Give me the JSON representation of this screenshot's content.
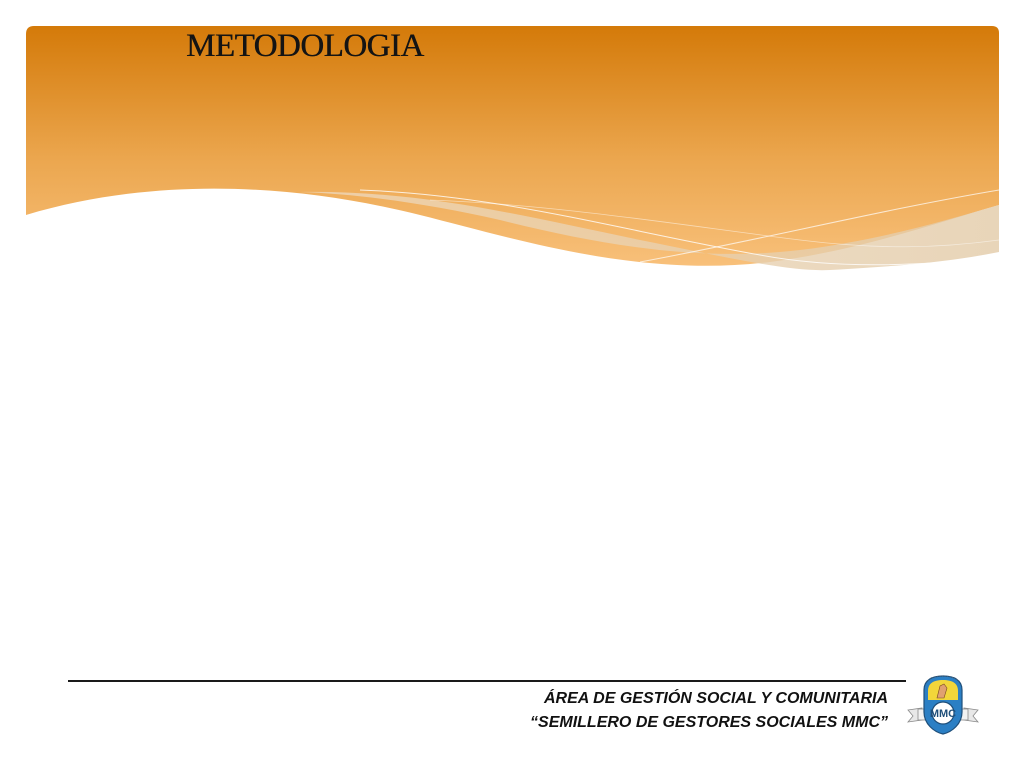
{
  "slide": {
    "title": "METODOLOGIA",
    "footer": {
      "line1": "ÁREA DE GESTIÓN SOCIAL Y COMUNITARIA",
      "line2": "“SEMILLERO DE GESTORES SOCIALES MMC”"
    },
    "logo": {
      "icon": "school-crest-icon",
      "monogram": "MMC"
    },
    "colors": {
      "banner_top": "#d47a09",
      "banner_bottom": "#f6b868",
      "wave_overlay": "#e6cfb0",
      "text": "#141414"
    }
  }
}
